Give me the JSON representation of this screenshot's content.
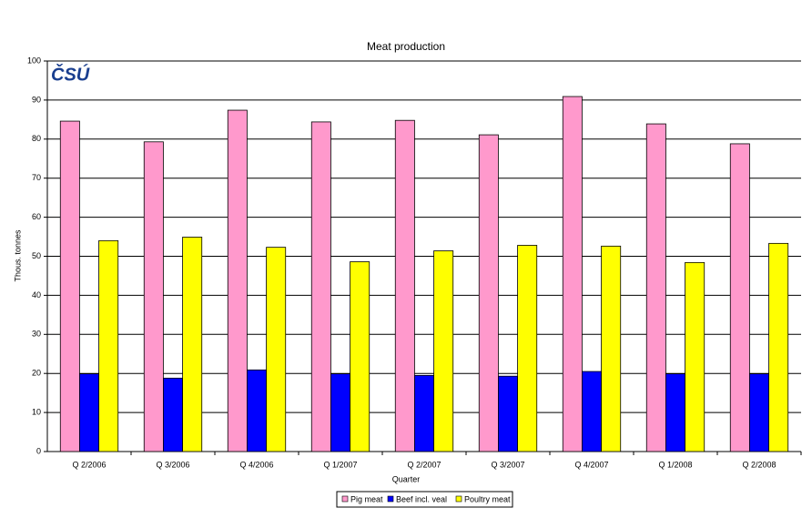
{
  "chart_data": {
    "type": "bar",
    "title": "Meat production",
    "logo": "ČSÚ",
    "x_label": "Quarter",
    "y_label": "Thous. tonnes",
    "categories": [
      "Q 2/2006",
      "Q 3/2006",
      "Q 4/2006",
      "Q 1/2007",
      "Q 2/2007",
      "Q 3/2007",
      "Q 4/2007",
      "Q 1/2008",
      "Q 2/2008"
    ],
    "series": [
      {
        "name": "Pig meat",
        "color": "#ff99cc",
        "values": [
          84.6,
          79.3,
          87.4,
          84.4,
          84.8,
          81.1,
          90.9,
          83.9,
          78.8
        ]
      },
      {
        "name": "Beef incl. veal",
        "color": "#0000ff",
        "values": [
          19.9,
          18.8,
          20.9,
          19.9,
          19.5,
          19.3,
          20.5,
          19.9,
          19.9
        ]
      },
      {
        "name": "Poultry meat",
        "color": "#ffff00",
        "values": [
          54.0,
          54.9,
          52.3,
          48.6,
          51.4,
          52.8,
          52.6,
          48.4,
          53.3
        ]
      }
    ],
    "ylim": [
      0,
      100
    ],
    "yticks": [
      0,
      10,
      20,
      30,
      40,
      50,
      60,
      70,
      80,
      90,
      100
    ],
    "grid": true,
    "legend": "bottom"
  }
}
